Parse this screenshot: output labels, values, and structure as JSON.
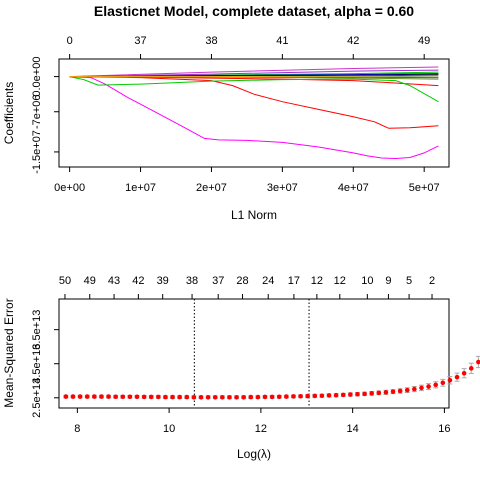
{
  "chart_data": [
    {
      "type": "line",
      "title": "Elasticnet Model, complete dataset, alpha = 0.60",
      "xlabel": "L1 Norm",
      "ylabel": "Coefficients",
      "xlim": [
        -1500000,
        53500000
      ],
      "ylim": [
        -18000000,
        3500000
      ],
      "x_ticks": [
        0,
        10000000,
        20000000,
        30000000,
        40000000,
        50000000
      ],
      "x_tick_labels": [
        "0e+00",
        "1e+07",
        "2e+07",
        "3e+07",
        "4e+07",
        "5e+07"
      ],
      "y_ticks": [
        0,
        -7000000,
        -15000000
      ],
      "y_tick_labels": [
        "0.0e+00",
        "-7e+06",
        "-1.5e+07"
      ],
      "top_ticks": [
        0,
        10000000,
        20000000,
        30000000,
        40000000,
        50000000
      ],
      "top_tick_labels": [
        "0",
        "37",
        "38",
        "41",
        "42",
        "49"
      ],
      "series": [
        {
          "color": "#ff00ff",
          "x": [
            0,
            3000000,
            5000000,
            8000000,
            12000000,
            16000000,
            19000000,
            21000000,
            25000000,
            30000000,
            35000000,
            40000000,
            42000000,
            44000000,
            46000000,
            48000000,
            50000000,
            52000000
          ],
          "y": [
            0,
            -200000,
            -1500000,
            -4000000,
            -7000000,
            -10000000,
            -12300000,
            -12600000,
            -12700000,
            -13100000,
            -14000000,
            -15200000,
            -15800000,
            -16200000,
            -16300000,
            -16100000,
            -15200000,
            -13800000
          ]
        },
        {
          "color": "#ff0000",
          "x": [
            0,
            10000000,
            20000000,
            23000000,
            26000000,
            30000000,
            35000000,
            40000000,
            43000000,
            45000000,
            48000000,
            52000000
          ],
          "y": [
            0,
            -200000,
            -800000,
            -1800000,
            -3500000,
            -5000000,
            -6500000,
            -8000000,
            -9000000,
            -10300000,
            -10200000,
            -9800000
          ]
        },
        {
          "color": "#ff0000",
          "x": [
            0,
            10000000,
            20000000,
            30000000,
            40000000,
            45000000,
            52000000
          ],
          "y": [
            0,
            -100000,
            -300000,
            -500000,
            -800000,
            -1200000,
            -1800000
          ]
        },
        {
          "color": "#00cc00",
          "x": [
            0,
            2000000,
            4000000,
            10000000,
            20000000,
            30000000,
            40000000,
            46000000,
            48000000,
            52000000
          ],
          "y": [
            0,
            -600000,
            -1700000,
            -1500000,
            -900000,
            -600000,
            -500000,
            -800000,
            -1800000,
            -5000000
          ]
        },
        {
          "color": "#00cc00",
          "x": [
            0,
            20000000,
            40000000,
            52000000
          ],
          "y": [
            0,
            300000,
            600000,
            900000
          ]
        },
        {
          "color": "#cc33cc",
          "x": [
            0,
            20000000,
            40000000,
            52000000
          ],
          "y": [
            0,
            900000,
            1600000,
            1900000
          ]
        },
        {
          "color": "#0000ff",
          "x": [
            0,
            20000000,
            40000000,
            52000000
          ],
          "y": [
            0,
            200000,
            400000,
            600000
          ]
        },
        {
          "color": "#000080",
          "x": [
            0,
            20000000,
            40000000,
            52000000
          ],
          "y": [
            0,
            -50000,
            -120000,
            -200000
          ]
        },
        {
          "color": "#000000",
          "x": [
            0,
            20000000,
            40000000,
            52000000
          ],
          "y": [
            0,
            100000,
            250000,
            350000
          ]
        },
        {
          "color": "#00bfff",
          "x": [
            0,
            20000000,
            40000000,
            52000000
          ],
          "y": [
            0,
            0,
            80000,
            150000
          ]
        },
        {
          "color": "#6b8e23",
          "x": [
            0,
            20000000,
            40000000,
            52000000
          ],
          "y": [
            0,
            -100000,
            -300000,
            -500000
          ]
        },
        {
          "color": "#9932cc",
          "x": [
            0,
            20000000,
            40000000,
            52000000
          ],
          "y": [
            0,
            500000,
            1100000,
            1300000
          ]
        },
        {
          "color": "#ffa500",
          "x": [
            0,
            20000000,
            40000000,
            52000000
          ],
          "y": [
            0,
            0,
            -50000,
            -100000
          ]
        }
      ]
    },
    {
      "type": "scatter",
      "xlabel": "Log(λ)",
      "ylabel": "Mean-Squared Error",
      "xlim": [
        7.6,
        16.1
      ],
      "ylim": [
        19000000000000,
        83000000000000
      ],
      "x_ticks": [
        8,
        10,
        12,
        14,
        16
      ],
      "x_tick_labels": [
        "8",
        "10",
        "12",
        "14",
        "16"
      ],
      "y_ticks": [
        25000000000000,
        45000000000000,
        65000000000000
      ],
      "y_tick_labels": [
        "2.5e+13",
        "4.5e+13",
        "6.5e+13"
      ],
      "top_ticks": [
        7.73,
        8.27,
        8.8,
        9.33,
        9.86,
        10.5,
        11.07,
        11.6,
        12.16,
        12.72,
        13.22,
        13.72,
        14.32,
        14.78,
        15.23,
        15.73
      ],
      "top_tick_labels": [
        "50",
        "49",
        "43",
        "42",
        "39",
        "38",
        "37",
        "28",
        "24",
        "17",
        "12",
        "12",
        "10",
        "9",
        "5",
        "2"
      ],
      "vlines": [
        10.55,
        13.05
      ],
      "points": {
        "x_start": 7.75,
        "x_step": 0.155,
        "y": [
          25700000000000,
          25700000000000,
          25700000000000,
          25700000000000,
          25700000000000,
          25700000000000,
          25700000000000,
          25600000000000,
          25600000000000,
          25600000000000,
          25600000000000,
          25500000000000,
          25500000000000,
          25500000000000,
          25400000000000,
          25400000000000,
          25400000000000,
          25400000000000,
          25300000000000,
          25300000000000,
          25300000000000,
          25300000000000,
          25300000000000,
          25300000000000,
          25300000000000,
          25300000000000,
          25400000000000,
          25400000000000,
          25500000000000,
          25500000000000,
          25600000000000,
          25700000000000,
          25800000000000,
          25900000000000,
          26000000000000,
          26100000000000,
          26200000000000,
          26400000000000,
          26500000000000,
          26700000000000,
          26900000000000,
          27100000000000,
          27300000000000,
          27600000000000,
          27900000000000,
          28200000000000,
          28600000000000,
          29000000000000,
          29500000000000,
          30100000000000,
          30800000000000,
          31600000000000,
          32600000000000,
          33800000000000,
          35300000000000,
          37100000000000,
          39400000000000,
          42300000000000,
          46000000000000,
          51000000000000,
          57000000000000,
          64000000000000,
          70000000000000
        ],
        "err": [
          800000000000,
          800000000000,
          800000000000,
          800000000000,
          800000000000,
          800000000000,
          800000000000,
          800000000000,
          800000000000,
          800000000000,
          800000000000,
          800000000000,
          800000000000,
          800000000000,
          800000000000,
          800000000000,
          800000000000,
          800000000000,
          800000000000,
          800000000000,
          800000000000,
          800000000000,
          800000000000,
          800000000000,
          800000000000,
          800000000000,
          800000000000,
          800000000000,
          800000000000,
          800000000000,
          800000000000,
          800000000000,
          800000000000,
          800000000000,
          900000000000,
          900000000000,
          900000000000,
          900000000000,
          900000000000,
          900000000000,
          1000000000000,
          1000000000000,
          1000000000000,
          1100000000000,
          1100000000000,
          1200000000000,
          1200000000000,
          1300000000000,
          1400000000000,
          1500000000000,
          1600000000000,
          1700000000000,
          1800000000000,
          2000000000000,
          2200000000000,
          2400000000000,
          2700000000000,
          3000000000000,
          3300000000000,
          3700000000000,
          4000000000000,
          4300000000000,
          4600000000000
        ]
      },
      "point_color": "#ff0000",
      "errorbar_color": "#aaaaaa"
    }
  ]
}
